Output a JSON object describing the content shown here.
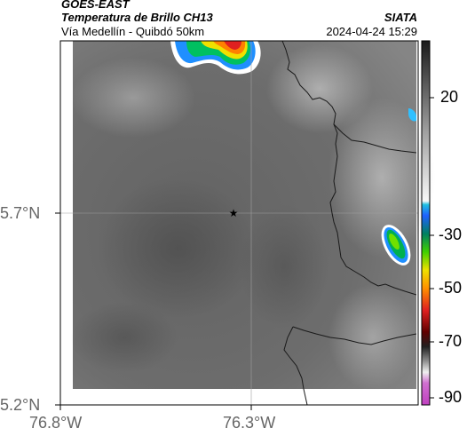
{
  "header": {
    "satellite": "GOES-EAST",
    "product": "Temperatura de Brillo CH13",
    "region": "Vía Medellín - Quibdó 50km",
    "organization": "SIATA",
    "timestamp": "2024-04-24 15:29"
  },
  "axes": {
    "x_ticks": [
      "76.8°W",
      "76.3°W"
    ],
    "y_ticks": [
      "5.7°N",
      "5.2°N"
    ]
  },
  "colorbar": {
    "tick_labels": [
      "20",
      "-30",
      "-50",
      "-70",
      "-90"
    ]
  },
  "colors": {
    "frame": "#000000",
    "coastline": "#1a1a1a",
    "grid": "#999999"
  }
}
